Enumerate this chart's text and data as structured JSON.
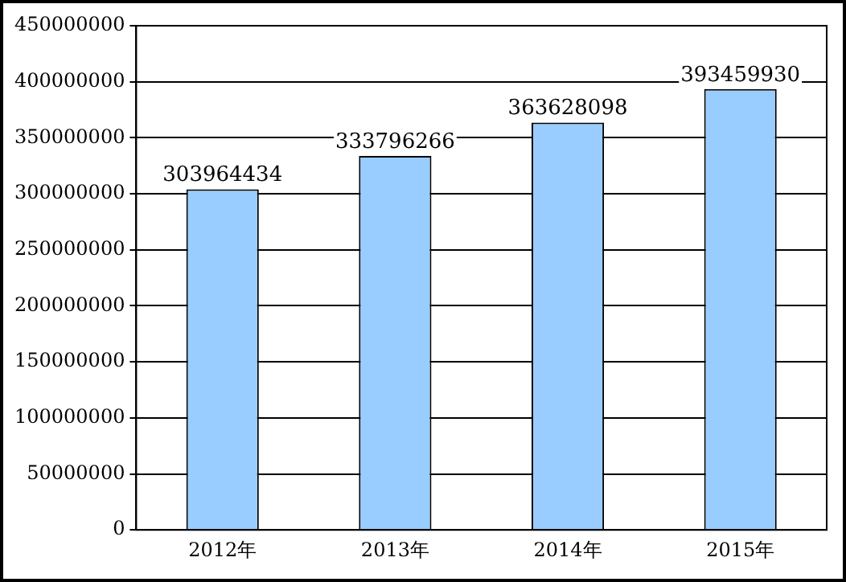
{
  "chart_data": {
    "type": "bar",
    "categories": [
      "2012年",
      "2013年",
      "2014年",
      "2015年"
    ],
    "values": [
      303964434,
      333796266,
      363628098,
      393459930
    ],
    "color": "#99ccff",
    "ylim": [
      0,
      450000000
    ],
    "yticks": [
      0,
      50000000,
      100000000,
      150000000,
      200000000,
      250000000,
      300000000,
      350000000,
      400000000,
      450000000
    ],
    "grid": "y",
    "data_labels": true,
    "legend": false
  }
}
